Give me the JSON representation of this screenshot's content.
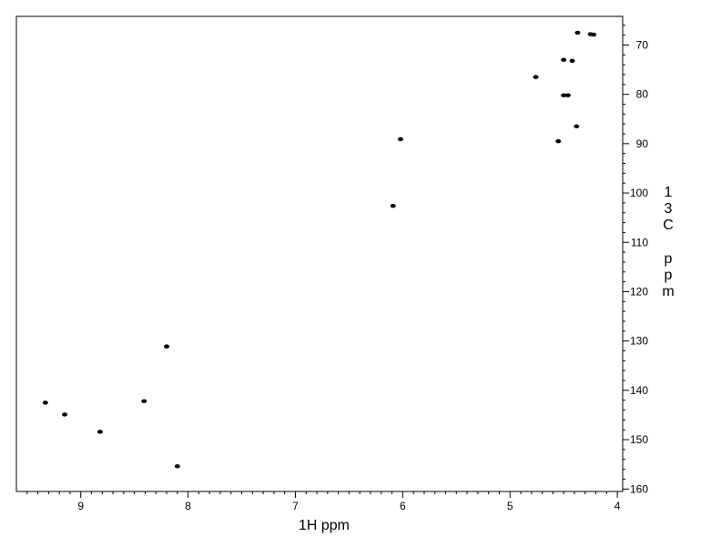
{
  "chart_data": {
    "type": "scatter",
    "xlabel": "1H ppm",
    "ylabel": "13C ppm",
    "ylabel_chars": [
      "1",
      "3",
      "C",
      "p",
      "p",
      "m"
    ],
    "xlim": [
      9.6,
      3.95
    ],
    "ylim": [
      64.2,
      160.5
    ],
    "x_ticks": [
      9,
      8,
      7,
      6,
      5,
      4
    ],
    "y_ticks": [
      70,
      80,
      90,
      100,
      110,
      120,
      130,
      140,
      150,
      160
    ],
    "grid": false,
    "points": [
      {
        "x": 4.37,
        "y": 67.5
      },
      {
        "x": 4.25,
        "y": 67.8
      },
      {
        "x": 4.22,
        "y": 67.9
      },
      {
        "x": 4.5,
        "y": 73.0
      },
      {
        "x": 4.42,
        "y": 73.2
      },
      {
        "x": 4.76,
        "y": 76.5
      },
      {
        "x": 4.5,
        "y": 80.2
      },
      {
        "x": 4.46,
        "y": 80.2
      },
      {
        "x": 4.38,
        "y": 86.5
      },
      {
        "x": 6.02,
        "y": 89.1
      },
      {
        "x": 4.55,
        "y": 89.5
      },
      {
        "x": 6.09,
        "y": 102.6
      },
      {
        "x": 8.2,
        "y": 131.1
      },
      {
        "x": 9.33,
        "y": 142.5
      },
      {
        "x": 8.41,
        "y": 142.2
      },
      {
        "x": 9.15,
        "y": 144.9
      },
      {
        "x": 8.82,
        "y": 148.4
      },
      {
        "x": 8.1,
        "y": 155.4
      }
    ],
    "color": "#000000"
  }
}
